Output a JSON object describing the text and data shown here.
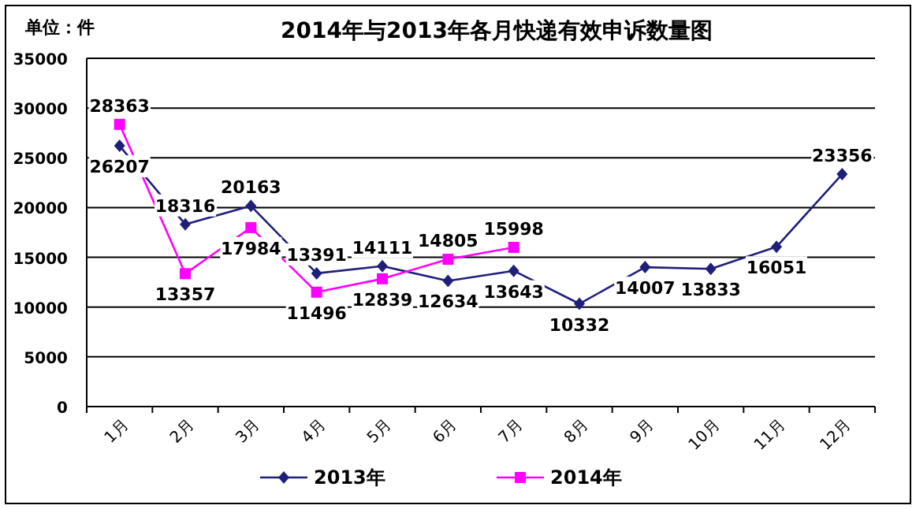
{
  "chart_data": {
    "type": "line",
    "title": "2014年与2013年各月快递有效申诉数量图",
    "ylabel": "单位：件",
    "categories": [
      "1月",
      "2月",
      "3月",
      "4月",
      "5月",
      "6月",
      "7月",
      "8月",
      "9月",
      "10月",
      "11月",
      "12月"
    ],
    "series": [
      {
        "name": "2013年",
        "color": "#1f1f7a",
        "marker": "diamond",
        "values": [
          26207,
          18316,
          20163,
          13391,
          14111,
          12634,
          13643,
          10332,
          14007,
          13833,
          16051,
          23356
        ]
      },
      {
        "name": "2014年",
        "color": "#ff00ff",
        "marker": "square",
        "values": [
          28363,
          13357,
          17984,
          11496,
          12839,
          14805,
          15998,
          null,
          null,
          null,
          null,
          null
        ]
      }
    ],
    "ylim": [
      0,
      35000
    ],
    "yticks": [
      0,
      5000,
      10000,
      15000,
      20000,
      25000,
      30000,
      35000
    ],
    "grid": "y",
    "legend": "bottom",
    "data_labels": true,
    "line_style": "solid"
  }
}
